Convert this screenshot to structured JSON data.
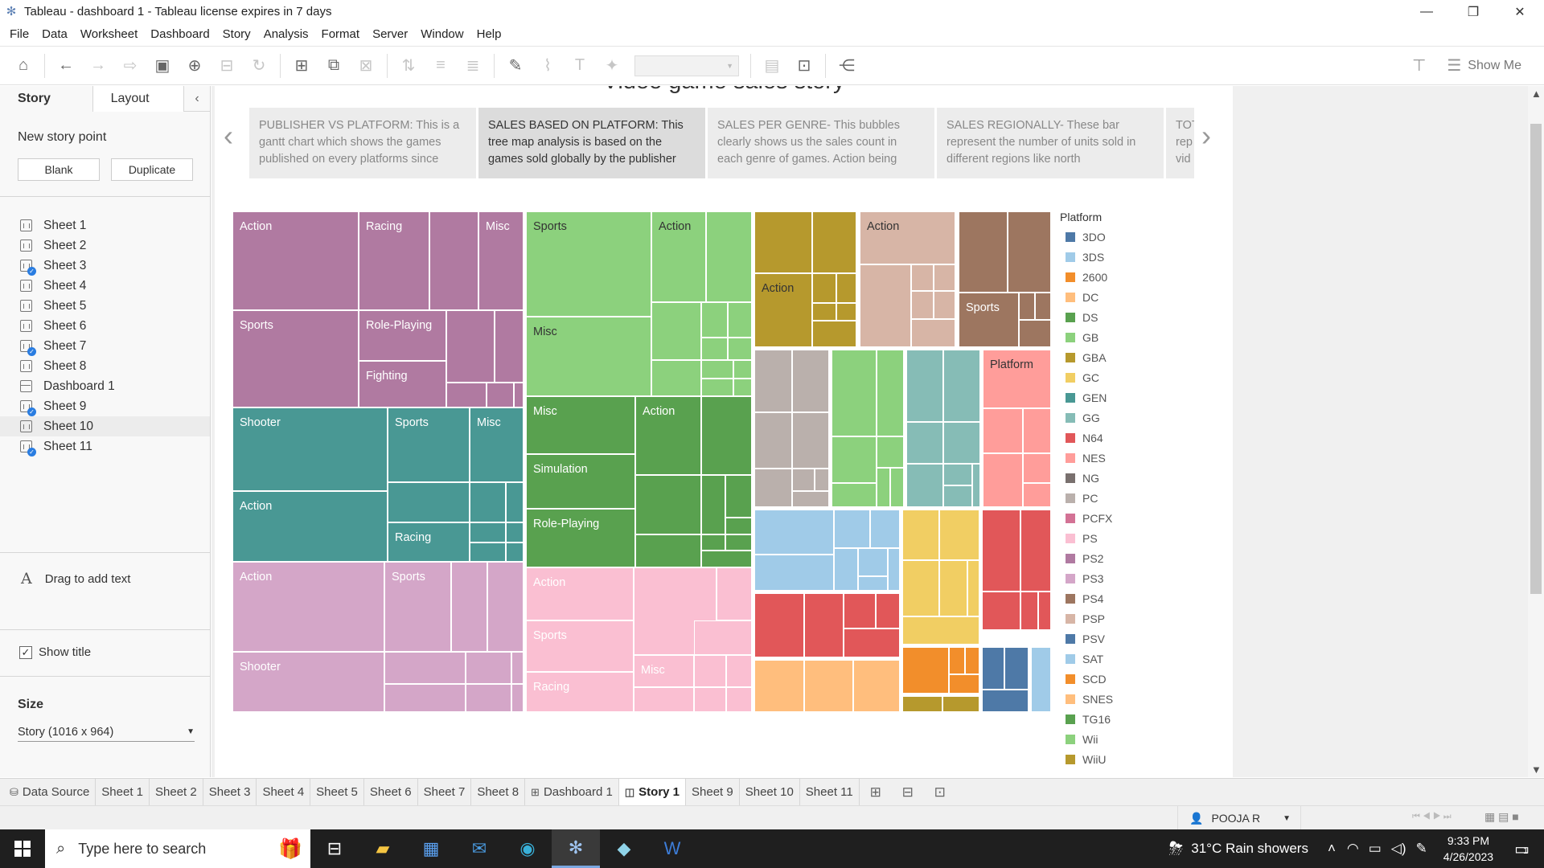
{
  "window": {
    "title": "Tableau - dashboard 1 - Tableau license expires in 7 days",
    "controls": [
      "—",
      "❐",
      "✕"
    ]
  },
  "menu": [
    "File",
    "Data",
    "Worksheet",
    "Dashboard",
    "Story",
    "Analysis",
    "Format",
    "Server",
    "Window",
    "Help"
  ],
  "toolbar": {
    "show_me": "Show Me"
  },
  "left_pane": {
    "tabs": [
      "Story",
      "Layout"
    ],
    "new_story_point": "New story point",
    "blank_button": "Blank",
    "duplicate_button": "Duplicate",
    "sheets": [
      {
        "label": "Sheet 1",
        "check": false,
        "kind": "sheet"
      },
      {
        "label": "Sheet 2",
        "check": false,
        "kind": "sheet"
      },
      {
        "label": "Sheet 3",
        "check": true,
        "kind": "sheet"
      },
      {
        "label": "Sheet 4",
        "check": false,
        "kind": "sheet"
      },
      {
        "label": "Sheet 5",
        "check": false,
        "kind": "sheet"
      },
      {
        "label": "Sheet 6",
        "check": false,
        "kind": "sheet"
      },
      {
        "label": "Sheet 7",
        "check": true,
        "kind": "sheet"
      },
      {
        "label": "Sheet 8",
        "check": false,
        "kind": "sheet"
      },
      {
        "label": "Dashboard 1",
        "check": false,
        "kind": "dashboard"
      },
      {
        "label": "Sheet 9",
        "check": true,
        "kind": "sheet"
      },
      {
        "label": "Sheet 10",
        "check": false,
        "kind": "sheet",
        "selected": true
      },
      {
        "label": "Sheet 11",
        "check": true,
        "kind": "sheet"
      }
    ],
    "drag_text": "Drag to add text",
    "show_title": "Show title",
    "size_heading": "Size",
    "size_value": "Story (1016 x 964)"
  },
  "story": {
    "title": "Video game sales story",
    "points": [
      "PUBLISHER VS PLATFORM: This is a gantt chart which shows the games published on every platforms since",
      "SALES BASED ON PLATFORM: This tree map analysis is based on the games sold globally by the publisher",
      "SALES PER GENRE- This bubbles clearly shows us the sales count in each genre of games. Action being",
      "SALES REGIONALLY- These bar represent the number of units sold in different regions like north",
      "TOTAL rep vid"
    ],
    "active_point": 1
  },
  "legend": {
    "title": "Platform",
    "items": [
      {
        "name": "3DO",
        "color": "#4e79a7"
      },
      {
        "name": "3DS",
        "color": "#a0cbe8"
      },
      {
        "name": "2600",
        "color": "#f28e2b"
      },
      {
        "name": "DC",
        "color": "#ffbe7d"
      },
      {
        "name": "DS",
        "color": "#59a14f"
      },
      {
        "name": "GB",
        "color": "#8cd17d"
      },
      {
        "name": "GBA",
        "color": "#b6992d"
      },
      {
        "name": "GC",
        "color": "#f1ce63"
      },
      {
        "name": "GEN",
        "color": "#499894"
      },
      {
        "name": "GG",
        "color": "#86bcb6"
      },
      {
        "name": "N64",
        "color": "#e15759"
      },
      {
        "name": "NES",
        "color": "#ff9d9a"
      },
      {
        "name": "NG",
        "color": "#79706e"
      },
      {
        "name": "PC",
        "color": "#bab0ac"
      },
      {
        "name": "PCFX",
        "color": "#d37295"
      },
      {
        "name": "PS",
        "color": "#fabfd2"
      },
      {
        "name": "PS2",
        "color": "#b07aa1"
      },
      {
        "name": "PS3",
        "color": "#d4a6c8"
      },
      {
        "name": "PS4",
        "color": "#9d7660"
      },
      {
        "name": "PSP",
        "color": "#d7b5a6"
      },
      {
        "name": "PSV",
        "color": "#4e79a7"
      },
      {
        "name": "SAT",
        "color": "#a0cbe8"
      },
      {
        "name": "SCD",
        "color": "#f28e2b"
      },
      {
        "name": "SNES",
        "color": "#ffbe7d"
      },
      {
        "name": "TG16",
        "color": "#59a14f"
      },
      {
        "name": "Wii",
        "color": "#8cd17d"
      },
      {
        "name": "WiiU",
        "color": "#b6992d"
      }
    ]
  },
  "treemap_labels": {
    "ps2": [
      "Action",
      "Racing",
      "Misc",
      "Sports",
      "Role-Playing",
      "Fighting"
    ],
    "gb": [
      "Sports",
      "Action",
      "Misc"
    ],
    "gba": [
      "Action"
    ],
    "psp": [
      "Action"
    ],
    "ps4": [
      "Sports"
    ],
    "gen": [
      "Shooter",
      "Sports",
      "Misc",
      "Action",
      "Racing"
    ],
    "ds": [
      "Misc",
      "Action",
      "Simulation",
      "Role-Playing"
    ],
    "nes": [
      "Platform"
    ],
    "ps3": [
      "Action",
      "Sports",
      "Shooter"
    ],
    "ps": [
      "Action",
      "Sports",
      "Racing",
      "Misc"
    ]
  },
  "sheet_tabs": [
    "Data Source",
    "Sheet 1",
    "Sheet 2",
    "Sheet 3",
    "Sheet 4",
    "Sheet 5",
    "Sheet 6",
    "Sheet 7",
    "Sheet 8",
    "Dashboard 1",
    "Story 1",
    "Sheet 9",
    "Sheet 10",
    "Sheet 11"
  ],
  "active_tab": "Story 1",
  "status": {
    "user": "POOJA R"
  },
  "taskbar": {
    "search_placeholder": "Type here to search",
    "weather": "31°C  Rain showers",
    "time": "9:33 PM",
    "date": "4/26/2023",
    "notifications": "1"
  }
}
